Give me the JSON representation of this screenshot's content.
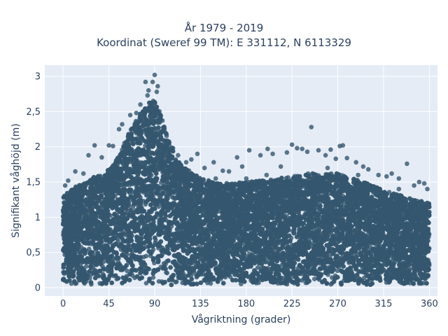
{
  "chart_data": {
    "type": "scatter",
    "title": [
      "År 1979 - 2019",
      "Koordinat (Sweref 99 TM): E 331112, N 6113329"
    ],
    "xlabel": "Vågriktning (grader)",
    "ylabel": "Signifikant våghöjd (m)",
    "xlim": [
      -18,
      368
    ],
    "ylim": [
      -0.12,
      3.16
    ],
    "xticks": [
      0,
      45,
      90,
      135,
      180,
      225,
      270,
      315,
      360
    ],
    "xtick_labels": [
      "0",
      "45",
      "90",
      "135",
      "180",
      "225",
      "270",
      "315",
      "360"
    ],
    "yticks": [
      0,
      0.5,
      1,
      1.5,
      2,
      2.5,
      3
    ],
    "ytick_labels": [
      "0",
      "0,5",
      "1",
      "1,5",
      "2",
      "2,5",
      "3"
    ],
    "grid": true,
    "marker_color": "#34566e",
    "plot_bg": "#e5ecf6",
    "envelope_upper": [
      [
        0,
        1.3
      ],
      [
        10,
        1.42
      ],
      [
        20,
        1.48
      ],
      [
        30,
        1.58
      ],
      [
        40,
        1.62
      ],
      [
        50,
        1.75
      ],
      [
        60,
        2.05
      ],
      [
        70,
        2.35
      ],
      [
        80,
        2.55
      ],
      [
        88,
        2.7
      ],
      [
        95,
        2.5
      ],
      [
        105,
        2.05
      ],
      [
        115,
        1.75
      ],
      [
        125,
        1.65
      ],
      [
        135,
        1.55
      ],
      [
        150,
        1.5
      ],
      [
        165,
        1.48
      ],
      [
        180,
        1.5
      ],
      [
        195,
        1.52
      ],
      [
        210,
        1.55
      ],
      [
        225,
        1.58
      ],
      [
        240,
        1.62
      ],
      [
        255,
        1.62
      ],
      [
        270,
        1.62
      ],
      [
        285,
        1.55
      ],
      [
        300,
        1.48
      ],
      [
        315,
        1.38
      ],
      [
        330,
        1.32
      ],
      [
        345,
        1.25
      ],
      [
        360,
        1.2
      ]
    ],
    "outliers": [
      [
        90,
        3.02
      ],
      [
        88,
        2.92
      ],
      [
        81,
        2.92
      ],
      [
        93,
        2.86
      ],
      [
        92,
        2.78
      ],
      [
        84,
        2.8
      ],
      [
        83,
        2.73
      ],
      [
        76,
        2.6
      ],
      [
        72,
        2.48
      ],
      [
        66,
        2.45
      ],
      [
        58,
        2.32
      ],
      [
        55,
        2.25
      ],
      [
        65,
        2.12
      ],
      [
        49,
        2.01
      ],
      [
        45,
        2.02
      ],
      [
        31,
        2.02
      ],
      [
        38,
        1.85
      ],
      [
        25,
        1.88
      ],
      [
        20,
        1.62
      ],
      [
        12,
        1.65
      ],
      [
        5,
        1.52
      ],
      [
        2,
        1.45
      ],
      [
        108,
        1.98
      ],
      [
        113,
        1.88
      ],
      [
        116,
        1.73
      ],
      [
        121,
        1.78
      ],
      [
        126,
        1.82
      ],
      [
        132,
        1.9
      ],
      [
        139,
        1.7
      ],
      [
        148,
        1.78
      ],
      [
        157,
        1.66
      ],
      [
        163,
        1.65
      ],
      [
        171,
        1.85
      ],
      [
        176,
        1.72
      ],
      [
        183,
        1.95
      ],
      [
        194,
        1.88
      ],
      [
        201,
        1.97
      ],
      [
        206,
        1.9
      ],
      [
        214,
        1.72
      ],
      [
        220,
        1.92
      ],
      [
        225,
        2.03
      ],
      [
        230,
        1.98
      ],
      [
        235,
        1.97
      ],
      [
        240,
        1.93
      ],
      [
        244,
        2.28
      ],
      [
        251,
        1.95
      ],
      [
        258,
        1.88
      ],
      [
        263,
        1.96
      ],
      [
        268,
        1.83
      ],
      [
        272,
        2.01
      ],
      [
        275,
        2.02
      ],
      [
        279,
        1.84
      ],
      [
        288,
        1.78
      ],
      [
        295,
        1.72
      ],
      [
        300,
        1.68
      ],
      [
        310,
        1.6
      ],
      [
        318,
        1.58
      ],
      [
        323,
        1.62
      ],
      [
        330,
        1.55
      ],
      [
        338,
        1.76
      ],
      [
        345,
        1.45
      ],
      [
        350,
        1.5
      ],
      [
        355,
        1.48
      ],
      [
        358,
        1.4
      ],
      [
        180,
        1.55
      ],
      [
        200,
        1.6
      ],
      [
        150,
        1.55
      ],
      [
        260,
        1.7
      ],
      [
        290,
        1.6
      ],
      [
        330,
        1.4
      ]
    ],
    "n_points": 14000
  }
}
